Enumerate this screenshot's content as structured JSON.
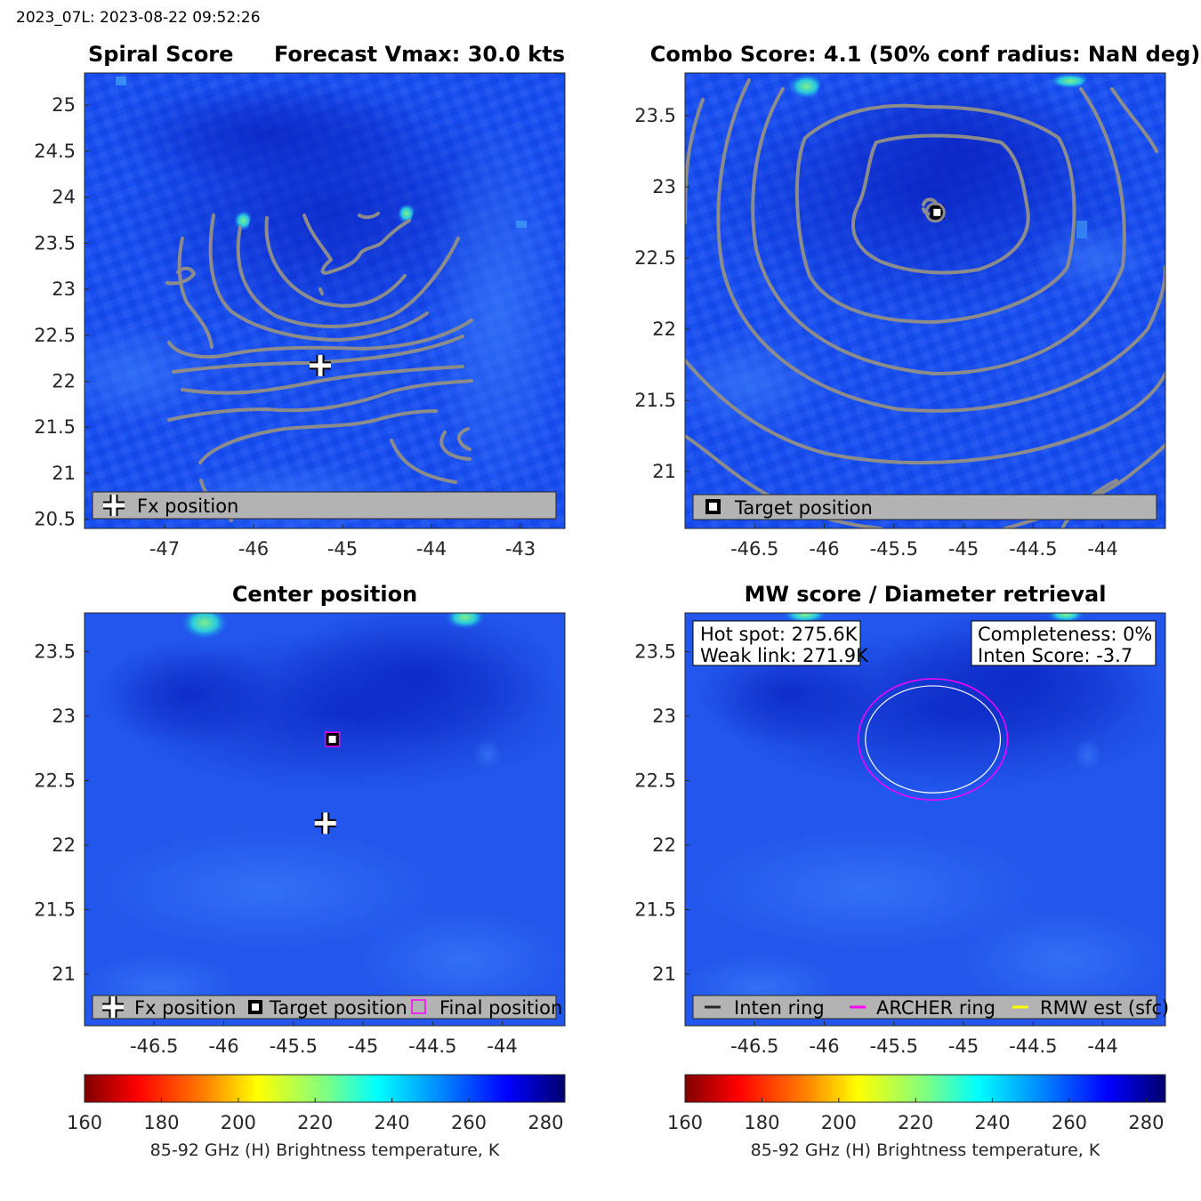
{
  "header": "2023_07L: 2023-08-22 09:52:26",
  "colors": {
    "field": "#1a50f0",
    "field_dark": "#0a26c8",
    "contour": "#8c8c8c",
    "legend_bg": "#b3b3b3",
    "magenta": "#ff00ff",
    "yellow": "#ffff00",
    "white": "#ffffff"
  },
  "chart_data": [
    {
      "id": "spiral",
      "type": "heatmap",
      "title_left": "Spiral Score",
      "title_right": "Forecast Vmax: 30.0 kts",
      "xlim": [
        -47.9,
        -42.5
      ],
      "ylim": [
        20.4,
        25.35
      ],
      "xticks": [
        -47,
        -46,
        -45,
        -44,
        -43
      ],
      "yticks": [
        25,
        24.5,
        24,
        23.5,
        23,
        22.5,
        22,
        21.5,
        21,
        20.5
      ],
      "markers": [
        {
          "kind": "fx-cross",
          "x": -45.25,
          "y": 22.17
        }
      ],
      "legend": [
        {
          "symbol": "cross",
          "label": "Fx position"
        }
      ]
    },
    {
      "id": "combo",
      "type": "heatmap",
      "title": "Combo Score: 4.1  (50% conf radius: NaN deg)",
      "xlim": [
        -47.0,
        -43.55
      ],
      "ylim": [
        20.6,
        23.8
      ],
      "xticks": [
        -46.5,
        -46,
        -45.5,
        -45,
        -44.5,
        -44
      ],
      "yticks": [
        23.5,
        23,
        22.5,
        22,
        21.5,
        21
      ],
      "markers": [
        {
          "kind": "target-square",
          "x": -45.19,
          "y": 22.82
        }
      ],
      "legend": [
        {
          "symbol": "square",
          "label": "Target position"
        }
      ]
    },
    {
      "id": "center",
      "type": "heatmap",
      "title": "Center position",
      "xlim": [
        -47.0,
        -43.55
      ],
      "ylim": [
        20.6,
        23.8
      ],
      "xticks": [
        -46.5,
        -46,
        -45.5,
        -45,
        -44.5,
        -44
      ],
      "yticks": [
        23.5,
        23,
        22.5,
        22,
        21.5,
        21
      ],
      "markers": [
        {
          "kind": "fx-cross",
          "x": -45.27,
          "y": 22.17
        },
        {
          "kind": "target-square",
          "x": -45.22,
          "y": 22.82
        },
        {
          "kind": "final-square",
          "x": -45.22,
          "y": 22.82
        }
      ],
      "legend": [
        {
          "symbol": "cross",
          "label": "Fx position"
        },
        {
          "symbol": "square",
          "label": "Target position"
        },
        {
          "symbol": "magenta-square",
          "label": "Final position"
        }
      ]
    },
    {
      "id": "mw",
      "type": "heatmap",
      "title": "MW score / Diameter retrieval",
      "xlim": [
        -47.0,
        -43.55
      ],
      "ylim": [
        20.6,
        23.8
      ],
      "xticks": [
        -46.5,
        -46,
        -45.5,
        -45,
        -44.5,
        -44
      ],
      "yticks": [
        23.5,
        23,
        22.5,
        22,
        21.5,
        21
      ],
      "rings": {
        "center_x": -45.22,
        "center_y": 22.82,
        "archer_radius": 0.47
      },
      "info_left": [
        "Hot spot: 275.6K",
        "Weak link: 271.9K"
      ],
      "info_right": [
        "Completeness: 0%",
        "Inten Score: -3.7"
      ],
      "legend": [
        {
          "symbol": "dark-line",
          "label": "Inten ring"
        },
        {
          "symbol": "magenta-line",
          "label": "ARCHER ring"
        },
        {
          "symbol": "yellow-line",
          "label": "RMW est (sfc)"
        }
      ]
    }
  ],
  "colorbar": {
    "min": 160,
    "max": 285,
    "ticks": [
      160,
      180,
      200,
      220,
      240,
      260,
      280
    ],
    "label": "85-92 GHz (H) Brightness temperature, K"
  }
}
